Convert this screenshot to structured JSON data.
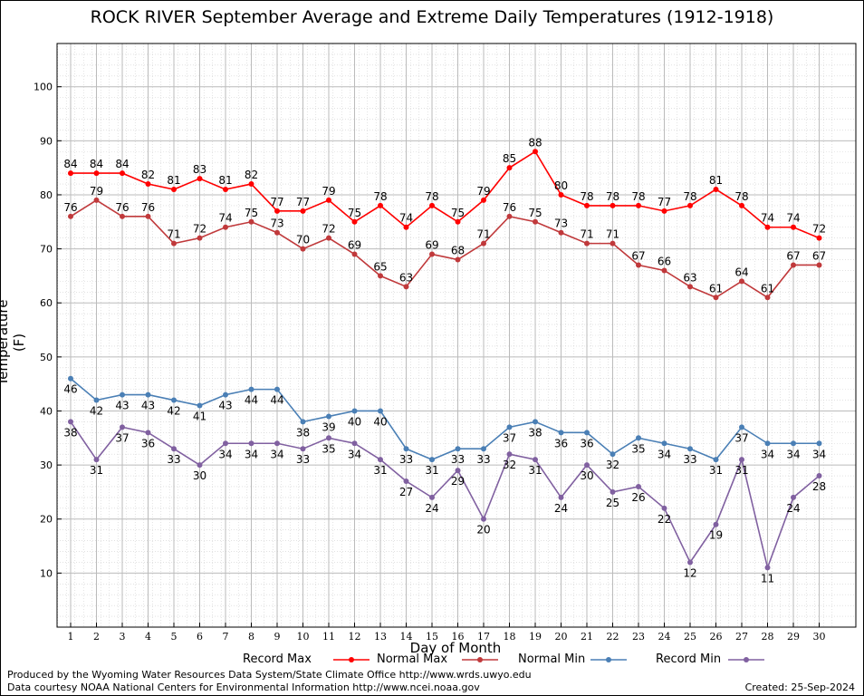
{
  "chart_data": {
    "type": "line",
    "title": "ROCK RIVER September Average and Extreme Daily Temperatures (1912-1918)",
    "xlabel": "Day of Month",
    "ylabel": "Temperature (F)",
    "x": [
      1,
      2,
      3,
      4,
      5,
      6,
      7,
      8,
      9,
      10,
      11,
      12,
      13,
      14,
      15,
      16,
      17,
      18,
      19,
      20,
      21,
      22,
      23,
      24,
      25,
      26,
      27,
      28,
      29,
      30
    ],
    "yticks": [
      10,
      20,
      30,
      40,
      50,
      60,
      70,
      80,
      90,
      100
    ],
    "ylim": [
      0,
      108
    ],
    "grid": true,
    "legend_position": "bottom",
    "series": [
      {
        "name": "Record Max",
        "color": "#ff0000",
        "values": [
          84,
          84,
          84,
          82,
          81,
          83,
          81,
          82,
          77,
          77,
          79,
          75,
          78,
          74,
          78,
          75,
          79,
          85,
          88,
          80,
          78,
          78,
          78,
          77,
          78,
          81,
          78,
          74,
          74,
          72
        ]
      },
      {
        "name": "Normal Max",
        "color": "#c0393b",
        "values": [
          76,
          79,
          76,
          76,
          71,
          72,
          74,
          75,
          73,
          70,
          72,
          69,
          65,
          63,
          69,
          68,
          71,
          76,
          75,
          73,
          71,
          71,
          67,
          66,
          63,
          61,
          64,
          61,
          67,
          67
        ]
      },
      {
        "name": "Normal Min",
        "color": "#4a7fb5",
        "values": [
          46,
          42,
          43,
          43,
          42,
          41,
          43,
          44,
          44,
          38,
          39,
          40,
          40,
          33,
          31,
          33,
          33,
          37,
          38,
          36,
          36,
          32,
          35,
          34,
          33,
          31,
          37,
          34,
          34,
          34
        ]
      },
      {
        "name": "Record Min",
        "color": "#8060a0",
        "values": [
          38,
          31,
          37,
          36,
          33,
          30,
          34,
          34,
          34,
          33,
          35,
          34,
          31,
          27,
          24,
          29,
          20,
          32,
          31,
          24,
          30,
          25,
          26,
          22,
          12,
          19,
          31,
          11,
          24,
          28
        ]
      }
    ]
  },
  "footer": {
    "produced_by": "Produced by the Wyoming Water Resources Data System/State Climate Office http://www.wrds.uwyo.edu",
    "courtesy": "Data courtesy NOAA National Centers for Environmental Information http://www.ncei.noaa.gov",
    "created": "Created:  25-Sep-2024"
  }
}
